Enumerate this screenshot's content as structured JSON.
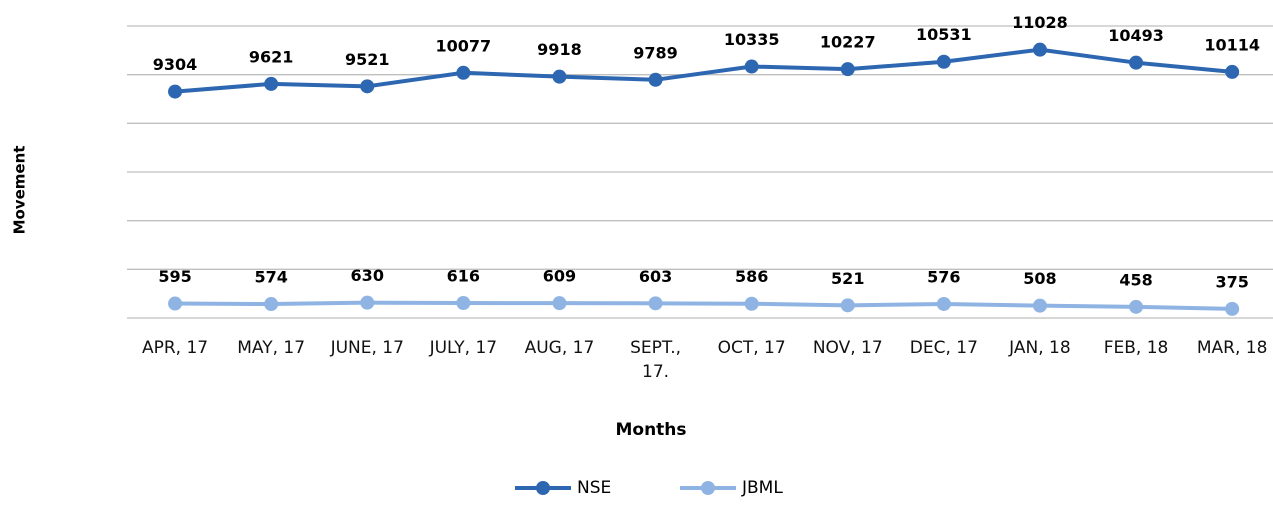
{
  "chart_data": {
    "type": "line",
    "xlabel": "Months",
    "ylabel": "Movement",
    "categories": [
      "APR, 17",
      "MAY, 17",
      "JUNE, 17",
      "JULY, 17",
      "AUG, 17",
      "SEPT., 17.",
      "OCT, 17",
      "NOV, 17",
      "DEC, 17",
      "JAN, 18",
      "FEB, 18",
      "MAR, 18"
    ],
    "series": [
      {
        "name": "NSE",
        "color": "#2e67b1",
        "values": [
          9304,
          9621,
          9521,
          10077,
          9918,
          9789,
          10335,
          10227,
          10531,
          11028,
          10493,
          10114
        ]
      },
      {
        "name": "JBML",
        "color": "#8fb4e3",
        "values": [
          595,
          574,
          630,
          616,
          609,
          603,
          586,
          521,
          576,
          508,
          458,
          375
        ]
      }
    ],
    "ylim": [
      0,
      12000
    ],
    "yticks": [
      0,
      2000,
      4000,
      6000,
      8000,
      10000,
      12000
    ],
    "ytick_labels": false,
    "grid": true,
    "legend": "bottom"
  }
}
